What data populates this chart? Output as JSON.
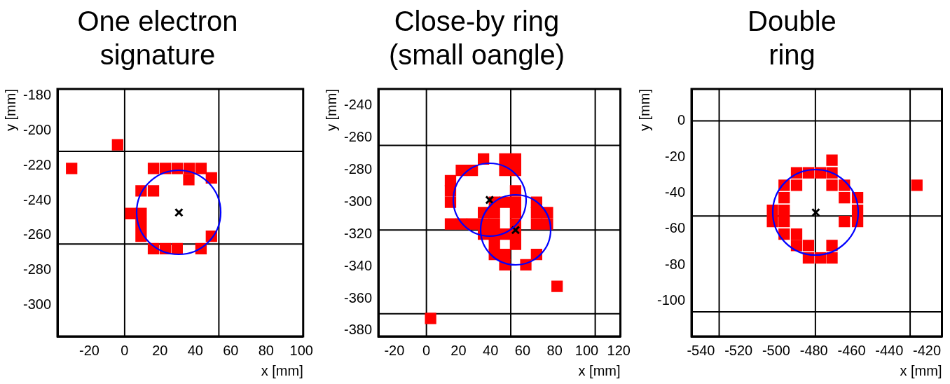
{
  "chart_data": [
    {
      "type": "scatter",
      "title": "One electron signature",
      "xlabel": "x [mm]",
      "ylabel": "y [mm]",
      "xlim": [
        -38,
        101
      ],
      "ylim": [
        -318,
        -176
      ],
      "xticks": [
        -20,
        0,
        20,
        40,
        60,
        80,
        100
      ],
      "yticks": [
        -300,
        -280,
        -260,
        -240,
        -220,
        -200,
        -180
      ],
      "grid": false,
      "series": [
        {
          "color": "#ff0000",
          "marker": "square",
          "x": [
            -30,
            -4,
            16.3,
            23,
            29.7,
            36.5,
            43.2,
            36.3,
            49.1,
            9.3,
            16.3,
            3.5,
            9.3,
            9.3,
            9.3,
            49.1,
            16.3,
            23,
            29.7,
            43.2
          ],
          "values": [
            -221.6,
            -208,
            -221.6,
            -221.6,
            -221.6,
            -221.6,
            -221.6,
            -228,
            -227,
            -234.5,
            -234.5,
            -247.5,
            -247.5,
            -254,
            -260.5,
            -260.5,
            -267.7,
            -267.7,
            -267.7,
            -267.7
          ]
        },
        {
          "color": "#000000",
          "marker": "cross",
          "x": [
            30.7
          ],
          "values": [
            -246.9
          ]
        }
      ],
      "ref_lines": [
        {
          "axis": "x",
          "value": 0
        },
        {
          "axis": "x",
          "value": 53.3
        },
        {
          "axis": "y",
          "value": -211.8
        },
        {
          "axis": "y",
          "value": -265
        }
      ]
    },
    {
      "type": "scatter",
      "title": "Close-by ring (small oangle)",
      "xlabel": "x [mm]",
      "ylabel": "y [mm]",
      "xlim": [
        -30,
        121
      ],
      "ylim": [
        -383.5,
        -229.7
      ],
      "xticks": [
        -20,
        0,
        20,
        40,
        60,
        80,
        100,
        120
      ],
      "yticks": [
        -380,
        -360,
        -340,
        -320,
        -300,
        -280,
        -260,
        -240
      ],
      "grid": false,
      "series": [
        {
          "color": "#ff0000",
          "marker": "square",
          "x": [
            35.6,
            48.9,
            55.6,
            21.8,
            28.6,
            48.9,
            55.6,
            15,
            15,
            55.6,
            15,
            42.4,
            48.9,
            55.6,
            68.7,
            35.6,
            42.4,
            55.6,
            68.7,
            75.5,
            15,
            21.8,
            28.6,
            35.6,
            42.4,
            55.6,
            68.7,
            75.5,
            35.6,
            42.4,
            48.9,
            55.6,
            42.4,
            55.6,
            42.4,
            48.9,
            68.7,
            48.9,
            62,
            81.5,
            2.6
          ],
          "values": [
            -273.2,
            -273.2,
            -273.2,
            -280.3,
            -280.3,
            -280.3,
            -280.3,
            -286.7,
            -293,
            -293,
            -300.1,
            -300.1,
            -300.1,
            -300.1,
            -300.1,
            -306.5,
            -306.5,
            -306.5,
            -306.5,
            -306.5,
            -313.6,
            -313.6,
            -313.6,
            -313.6,
            -313.6,
            -313.6,
            -313.6,
            -313.6,
            -319.9,
            -319.9,
            -319.9,
            -319.9,
            -326.3,
            -326.3,
            -332.6,
            -332.6,
            -332.6,
            -339,
            -339,
            -352.4,
            -372.3
          ]
        },
        {
          "color": "#000000",
          "marker": "cross",
          "x": [
            39.4,
            55.6
          ],
          "values": [
            -298.7,
            -317.4
          ]
        }
      ],
      "ref_lines": [
        {
          "axis": "x",
          "value": 0
        },
        {
          "axis": "x",
          "value": 52.6
        },
        {
          "axis": "x",
          "value": 105.3
        },
        {
          "axis": "y",
          "value": -264.8
        },
        {
          "axis": "y",
          "value": -317.4
        },
        {
          "axis": "y",
          "value": -369.4
        }
      ]
    },
    {
      "type": "scatter",
      "title": "Double ring",
      "xlabel": "x [mm]",
      "ylabel": "y [mm]",
      "xlim": [
        -545,
        -412
      ],
      "ylim": [
        -119.5,
        17.7
      ],
      "xticks": [
        -540,
        -520,
        -500,
        -480,
        -460,
        -440,
        -420
      ],
      "yticks": [
        -100,
        -80,
        -60,
        -40,
        -20,
        0
      ],
      "grid": false,
      "series": [
        {
          "color": "#ff0000",
          "marker": "square",
          "x": [
            -470.4,
            -489.2,
            -482.9,
            -476.6,
            -470.4,
            -495.8,
            -489.2,
            -470.4,
            -463.8,
            -425.3,
            -495.8,
            -463.8,
            -456.8,
            -502,
            -495.8,
            -456.8,
            -502,
            -495.8,
            -463.8,
            -456.8,
            -495.8,
            -489.2,
            -489.2,
            -482.9,
            -470.4,
            -482.9,
            -476.6,
            -470.4
          ],
          "values": [
            -21.8,
            -28.8,
            -28.8,
            -28.8,
            -28.8,
            -35.7,
            -35.7,
            -35.7,
            -35.7,
            -35.7,
            -42.6,
            -42.6,
            -42.6,
            -49.6,
            -49.6,
            -49.6,
            -55.8,
            -55.8,
            -55.8,
            -55.8,
            -62.8,
            -62.8,
            -69.1,
            -69.1,
            -69.1,
            -76,
            -76,
            -76
          ]
        },
        {
          "color": "#000000",
          "marker": "cross",
          "x": [
            -479
          ],
          "values": [
            -50.8
          ]
        }
      ],
      "ref_lines": [
        {
          "axis": "x",
          "value": -530.3
        },
        {
          "axis": "x",
          "value": -479.2
        },
        {
          "axis": "x",
          "value": -428.9
        },
        {
          "axis": "y",
          "value": 0
        },
        {
          "axis": "y",
          "value": -52.7
        },
        {
          "axis": "y",
          "value": -105.9
        }
      ]
    }
  ]
}
